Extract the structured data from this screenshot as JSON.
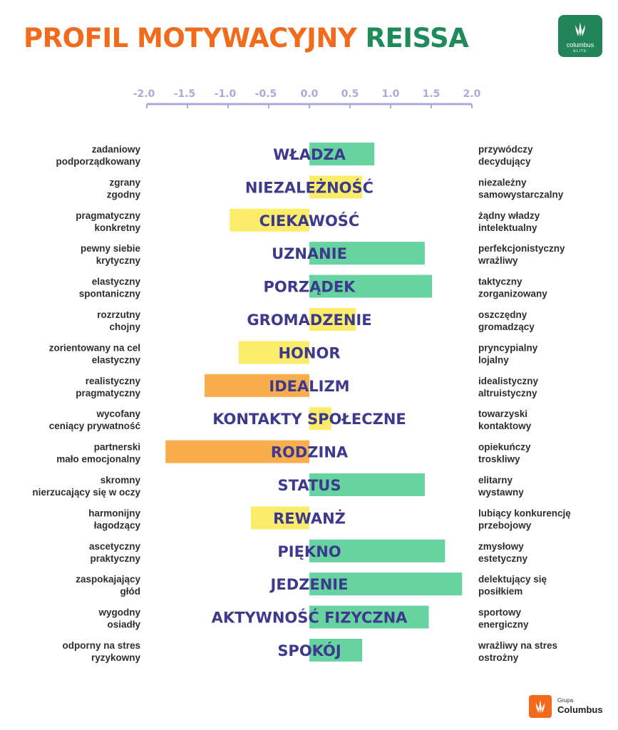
{
  "title": {
    "part1": "PROFIL MOTYWACYJNY",
    "part2": "REISSA"
  },
  "logo_top": {
    "word": "columbus",
    "sub": "ELITE"
  },
  "logo_bottom": {
    "grupa": "Grupa",
    "name": "Columbus"
  },
  "colors": {
    "green": "#66D3A0",
    "yellow": "#FBEC6A",
    "orange": "#F9AE4E",
    "axis": "#A9AAD9",
    "category": "#3D3A8E"
  },
  "chart_data": {
    "type": "bar",
    "orientation": "horizontal-diverging",
    "xlim": [
      -2.0,
      2.0
    ],
    "xticks": [
      "-2.0",
      "-1.5",
      "-1.0",
      "-0.5",
      "0.0",
      "0.5",
      "1.0",
      "1.5",
      "2.0"
    ],
    "grid": false,
    "rows": [
      {
        "category": "WŁADZA",
        "value": 0.8,
        "color": "green",
        "left": [
          "zadaniowy",
          "podporządkowany"
        ],
        "right": [
          "przywódczy",
          "decydujący"
        ]
      },
      {
        "category": "NIEZALEŻNOŚĆ",
        "value": 0.65,
        "color": "yellow",
        "left": [
          "zgrany",
          "zgodny"
        ],
        "right": [
          "niezależny",
          "samowystarczalny"
        ]
      },
      {
        "category": "CIEKAWOŚĆ",
        "value": -0.98,
        "color": "yellow",
        "left": [
          "pragmatyczny",
          "konkretny"
        ],
        "right": [
          "żądny władzy",
          "intelektualny"
        ]
      },
      {
        "category": "UZNANIE",
        "value": 1.42,
        "color": "green",
        "left": [
          "pewny siebie",
          "krytyczny"
        ],
        "right": [
          "perfekcjonistyczny",
          "wrażliwy"
        ]
      },
      {
        "category": "PORZĄDEK",
        "value": 1.51,
        "color": "green",
        "left": [
          "elastyczny",
          "spontaniczny"
        ],
        "right": [
          "taktyczny",
          "zorganizowany"
        ]
      },
      {
        "category": "GROMADZENIE",
        "value": 0.57,
        "color": "yellow",
        "left": [
          "rozrzutny",
          "chojny"
        ],
        "right": [
          "oszczędny",
          "gromadzący"
        ]
      },
      {
        "category": "HONOR",
        "value": -0.87,
        "color": "yellow",
        "left": [
          "zorientowany na cel",
          "elastyczny"
        ],
        "right": [
          "pryncypialny",
          "lojalny"
        ]
      },
      {
        "category": "IDEALIZM",
        "value": -1.29,
        "color": "orange",
        "left": [
          "realistyczny",
          "pragmatyczny"
        ],
        "right": [
          "idealistyczny",
          "altruistyczny"
        ]
      },
      {
        "category": "KONTAKTY SPOŁECZNE",
        "value": 0.27,
        "color": "yellow",
        "left": [
          "wycofany",
          "ceniący prywatność"
        ],
        "right": [
          "towarzyski",
          "kontaktowy"
        ]
      },
      {
        "category": "RODZINA",
        "value": -1.77,
        "color": "orange",
        "left": [
          "partnerski",
          "mało emocjonalny"
        ],
        "right": [
          "opiekuńczy",
          "troskliwy"
        ]
      },
      {
        "category": "STATUS",
        "value": 1.42,
        "color": "green",
        "left": [
          "skromny",
          "nierzucający się w oczy"
        ],
        "right": [
          "elitarny",
          "wystawny"
        ]
      },
      {
        "category": "REWANŻ",
        "value": -0.72,
        "color": "yellow",
        "left": [
          "harmonijny",
          "łagodzący"
        ],
        "right": [
          "lubiący konkurencję",
          "przebojowy"
        ]
      },
      {
        "category": "PIĘKNO",
        "value": 1.67,
        "color": "green",
        "left": [
          "ascetyczny",
          "praktyczny"
        ],
        "right": [
          "zmysłowy",
          "estetyczny"
        ]
      },
      {
        "category": "JEDZENIE",
        "value": 1.88,
        "color": "green",
        "left": [
          "zaspokajający",
          "głód"
        ],
        "right": [
          "delektujący się",
          "posiłkiem"
        ]
      },
      {
        "category": "AKTYWNOŚĆ FIZYCZNA",
        "value": 1.47,
        "color": "green",
        "left": [
          "wygodny",
          "osiadły"
        ],
        "right": [
          "sportowy",
          "energiczny"
        ]
      },
      {
        "category": "SPOKÓJ",
        "value": 0.65,
        "color": "green",
        "left": [
          "odporny na stres",
          "ryzykowny"
        ],
        "right": [
          "wrażliwy na stres",
          "ostrożny"
        ]
      }
    ]
  }
}
